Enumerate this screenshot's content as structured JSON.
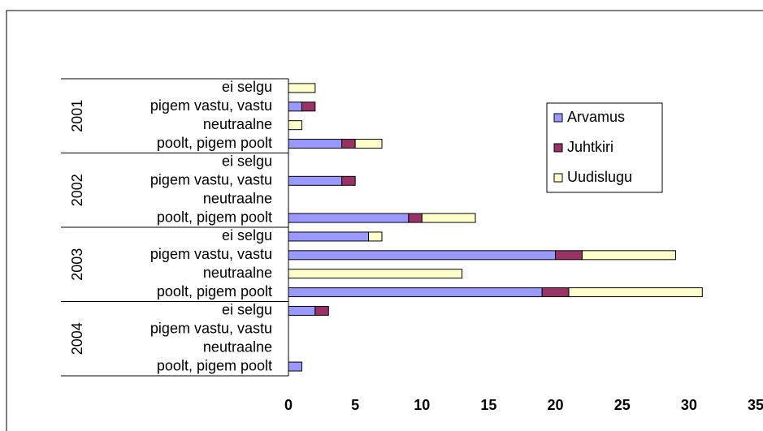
{
  "chart_data": {
    "type": "stacked-bar-horizontal",
    "groups": [
      "2001",
      "2002",
      "2003",
      "2004"
    ],
    "categories": [
      "ei selgu",
      "pigem vastu, vastu",
      "neutraalne",
      "poolt, pigem poolt",
      "ei selgu",
      "pigem vastu, vastu",
      "neutraalne",
      "poolt, pigem poolt",
      "ei selgu",
      "pigem vastu, vastu",
      "neutraalne",
      "poolt, pigem poolt",
      "ei selgu",
      "pigem vastu, vastu",
      "neutraalne",
      "poolt, pigem poolt"
    ],
    "series": [
      {
        "name": "Arvamus",
        "color": "#9999ff",
        "values": [
          0,
          1,
          0,
          4,
          0,
          4,
          0,
          9,
          6,
          20,
          0,
          19,
          2,
          0,
          0,
          1
        ]
      },
      {
        "name": "Juhtkiri",
        "color": "#993366",
        "values": [
          0,
          1,
          0,
          1,
          0,
          1,
          0,
          1,
          0,
          2,
          0,
          2,
          1,
          0,
          0,
          0
        ]
      },
      {
        "name": "Uudislugu",
        "color": "#ffffcc",
        "values": [
          2,
          0,
          1,
          2,
          0,
          0,
          0,
          4,
          1,
          7,
          13,
          10,
          0,
          0,
          0,
          0
        ]
      }
    ],
    "xlim": [
      0,
      35
    ],
    "xticks": [
      0,
      5,
      10,
      15,
      20,
      25,
      30,
      35
    ]
  }
}
